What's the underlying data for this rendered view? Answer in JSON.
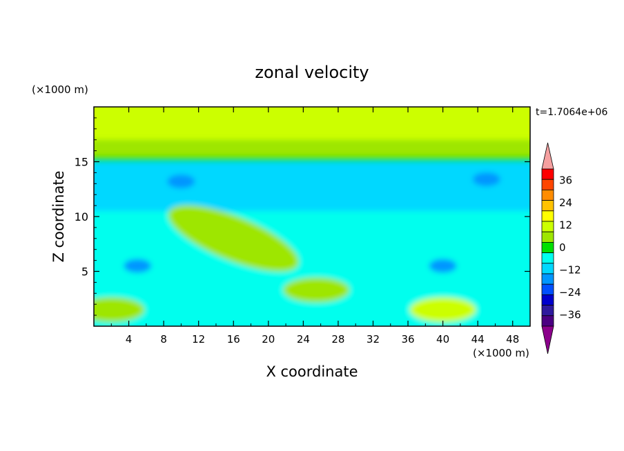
{
  "chart_data": {
    "type": "heatmap",
    "title": "zonal velocity",
    "xlabel": "X coordinate",
    "ylabel": "Z coordinate",
    "x_unit": "(×1000 m)",
    "y_unit": "(×1000 m)",
    "time_label": "t=1.7064e+06",
    "xlim": [
      0,
      50
    ],
    "ylim": [
      0,
      20
    ],
    "xticks": [
      4,
      8,
      12,
      16,
      20,
      24,
      28,
      32,
      36,
      40,
      44,
      48
    ],
    "yticks": [
      5,
      10,
      15
    ],
    "colorbar": {
      "ticks": [
        36,
        24,
        12,
        0,
        -12,
        -24,
        -36
      ],
      "levels": [
        -42,
        -36,
        -30,
        -24,
        -18,
        -12,
        -6,
        0,
        6,
        12,
        18,
        24,
        30,
        36,
        42
      ],
      "colors": [
        "#8b008b",
        "#4b0082",
        "#2e1a9e",
        "#0000cd",
        "#0050ff",
        "#0096ff",
        "#00d8ff",
        "#00ffee",
        "#00e000",
        "#9ee600",
        "#ccff00",
        "#ffff00",
        "#ffc200",
        "#ff8c00",
        "#ff4500",
        "#ff0000",
        "#f5a0a0"
      ]
    },
    "field_features": [
      {
        "kind": "band",
        "z_range": [
          17,
          20
        ],
        "value": 12
      },
      {
        "kind": "band",
        "z_range": [
          15.5,
          17
        ],
        "value": 8
      },
      {
        "kind": "band",
        "z_range": [
          15,
          15.5
        ],
        "value": 2
      },
      {
        "kind": "band",
        "z_range": [
          10.5,
          15
        ],
        "value": -8
      },
      {
        "kind": "blob",
        "x": 5,
        "z": 5.5,
        "value": -14
      },
      {
        "kind": "blob",
        "x": 40,
        "z": 5.5,
        "value": -14
      },
      {
        "kind": "blob",
        "x": 10,
        "z": 13.2,
        "value": -14
      },
      {
        "kind": "blob",
        "x": 45,
        "z": 13.4,
        "value": -14
      },
      {
        "kind": "ridge",
        "x_range": [
          8,
          24
        ],
        "z_range": [
          6,
          10
        ],
        "value": 10
      },
      {
        "kind": "blob",
        "x": 40,
        "z": 1.5,
        "value": 12
      },
      {
        "kind": "blob",
        "x": 25.5,
        "z": 3.3,
        "value": 8
      },
      {
        "kind": "blob",
        "x": 2,
        "z": 1.5,
        "value": 10
      }
    ]
  }
}
